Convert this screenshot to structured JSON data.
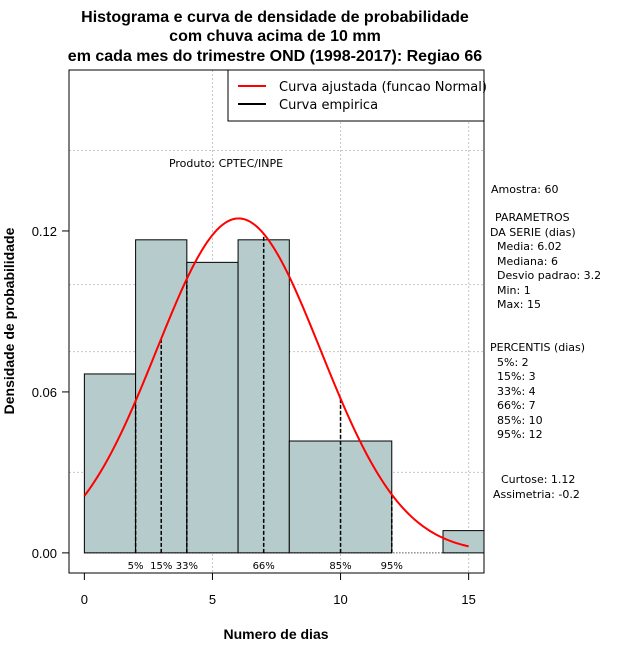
{
  "chart_data": {
    "type": "histogram",
    "title": [
      "Histograma e curva de densidade de probabilidade",
      "com chuva acima de 10 mm",
      "em cada mes do trimestre OND (1998-2017): Regiao 66"
    ],
    "xlabel": "Numero de dias",
    "ylabel": "Densidade de probabilidade",
    "xlim": [
      -0.6,
      15.6
    ],
    "ylim": [
      -0.0075,
      0.18
    ],
    "x_ticks": [
      0,
      5,
      10,
      15
    ],
    "y_ticks": [
      0.0,
      0.06,
      0.12
    ],
    "y_tick_labels": [
      "0.00",
      "0.06",
      "0.12"
    ],
    "bins": [
      {
        "start": 0,
        "end": 2,
        "density": 0.0667
      },
      {
        "start": 2,
        "end": 4,
        "density": 0.1167
      },
      {
        "start": 4,
        "end": 6,
        "density": 0.1083
      },
      {
        "start": 6,
        "end": 8,
        "density": 0.1167
      },
      {
        "start": 8,
        "end": 12,
        "density": 0.0417
      },
      {
        "start": 12,
        "end": 14,
        "density": 0.0
      },
      {
        "start": 14,
        "end": 16,
        "density": 0.0083
      }
    ],
    "normal_fit": {
      "mean": 6.02,
      "sd": 3.2,
      "x_range": [
        0,
        15
      ]
    },
    "percentile_lines": [
      {
        "label": "5%",
        "x": 2
      },
      {
        "label": "15%",
        "x": 3
      },
      {
        "label": "33%",
        "x": 4
      },
      {
        "label": "66%",
        "x": 7
      },
      {
        "label": "85%",
        "x": 10
      },
      {
        "label": "95%",
        "x": 12
      }
    ],
    "legend": [
      {
        "label": "Curva ajustada (funcao Normal)",
        "color": "#ff0000"
      },
      {
        "label": "Curva empirica",
        "color": "#000000"
      }
    ],
    "annotation": "Produto: CPTEC/INPE",
    "bar_color": "#b6cccc",
    "grid": true
  },
  "side_panel": {
    "amostra": "Amostra: 60",
    "params_title_1": "PARAMETROS",
    "params_title_2": "DA SERIE (dias)",
    "params": [
      "Media: 6.02",
      "Mediana: 6",
      "Desvio padrao: 3.2",
      "Min: 1",
      "Max: 15"
    ],
    "percentis_title": "PERCENTIS (dias)",
    "percentis": [
      "5%: 2",
      "15%: 3",
      "33%: 4",
      "66%: 7",
      "85%: 10",
      "95%: 12"
    ],
    "curtose": "Curtose: 1.12",
    "assimetria": "Assimetria: -0.2"
  }
}
